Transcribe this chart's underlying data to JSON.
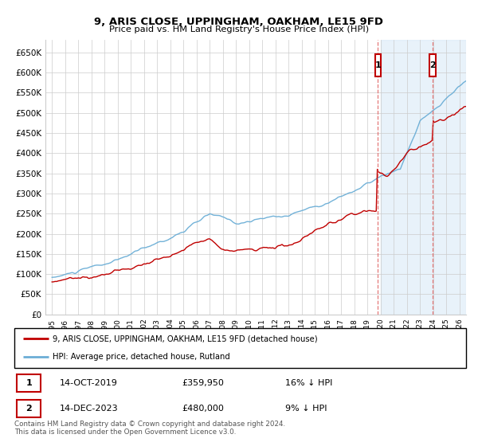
{
  "title": "9, ARIS CLOSE, UPPINGHAM, OAKHAM, LE15 9FD",
  "subtitle": "Price paid vs. HM Land Registry's House Price Index (HPI)",
  "legend_property": "9, ARIS CLOSE, UPPINGHAM, OAKHAM, LE15 9FD (detached house)",
  "legend_hpi": "HPI: Average price, detached house, Rutland",
  "annotation1_label": "1",
  "annotation1_date": "14-OCT-2019",
  "annotation1_price": "£359,950",
  "annotation1_hpi": "16% ↓ HPI",
  "annotation2_label": "2",
  "annotation2_date": "14-DEC-2023",
  "annotation2_price": "£480,000",
  "annotation2_hpi": "9% ↓ HPI",
  "footer": "Contains HM Land Registry data © Crown copyright and database right 2024.\nThis data is licensed under the Open Government Licence v3.0.",
  "hpi_color": "#6BAED6",
  "property_color": "#C00000",
  "annotation_box_color": "#C00000",
  "background_color": "#FFFFFF",
  "grid_color": "#CCCCCC",
  "ylim": [
    0,
    680000
  ],
  "yticks": [
    0,
    50000,
    100000,
    150000,
    200000,
    250000,
    300000,
    350000,
    400000,
    450000,
    500000,
    550000,
    600000,
    650000
  ],
  "shade_color": "#D6E8F7",
  "dashed_line_color": "#E06060",
  "sale1_year": 2019.79,
  "sale2_year": 2023.96,
  "sale1_price": 359950,
  "sale2_price": 480000,
  "xlim_start": 1994.5,
  "xlim_end": 2026.5,
  "shade_start": 2020.0
}
